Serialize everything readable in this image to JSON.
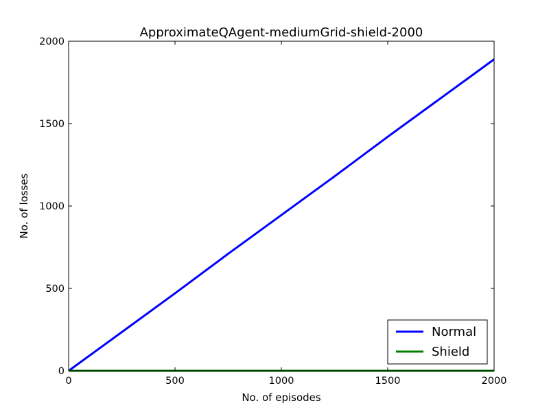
{
  "chart_data": {
    "type": "line",
    "title": "ApproximateQAgent-mediumGrid-shield-2000",
    "xlabel": "No. of episodes",
    "ylabel": "No. of losses",
    "xlim": [
      0,
      2000
    ],
    "ylim": [
      0,
      2000
    ],
    "xticks": [
      0,
      500,
      1000,
      1500,
      2000
    ],
    "yticks": [
      0,
      500,
      1000,
      1500,
      2000
    ],
    "grid": false,
    "legend_position": "bottom-right",
    "series": [
      {
        "name": "Normal",
        "color": "#0000ff",
        "x": [
          0,
          250,
          500,
          750,
          1000,
          1250,
          1500,
          1750,
          2000
        ],
        "y": [
          0,
          235,
          470,
          710,
          945,
          1180,
          1420,
          1655,
          1890
        ]
      },
      {
        "name": "Shield",
        "color": "#008000",
        "x": [
          0,
          2000
        ],
        "y": [
          0,
          0
        ]
      }
    ]
  }
}
